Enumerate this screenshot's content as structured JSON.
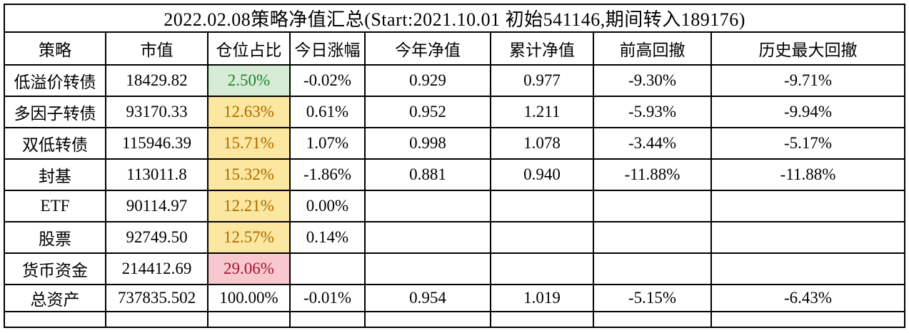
{
  "title": "2022.02.08策略净值汇总(Start:2021.10.01 初始541146,期间转入189176)",
  "table": {
    "headers": [
      "策略",
      "市值",
      "仓位占比",
      "今日涨幅",
      "今年净值",
      "累计净值",
      "前高回撤",
      "历史最大回撤"
    ],
    "rows": [
      {
        "cells": [
          "低溢价转债",
          "18429.82",
          "2.50%",
          "-0.02%",
          "0.929",
          "0.977",
          "-9.30%",
          "-9.71%"
        ],
        "highlight": "green"
      },
      {
        "cells": [
          "多因子转债",
          "93170.33",
          "12.63%",
          "0.61%",
          "0.952",
          "1.211",
          "-5.93%",
          "-9.94%"
        ],
        "highlight": "yellow"
      },
      {
        "cells": [
          "双低转债",
          "115946.39",
          "15.71%",
          "1.07%",
          "0.998",
          "1.078",
          "-3.44%",
          "-5.17%"
        ],
        "highlight": "yellow"
      },
      {
        "cells": [
          "封基",
          "113011.8",
          "15.32%",
          "-1.86%",
          "0.881",
          "0.940",
          "-11.88%",
          "-11.88%"
        ],
        "highlight": "yellow"
      },
      {
        "cells": [
          "ETF",
          "90114.97",
          "12.21%",
          "0.00%",
          "",
          "",
          "",
          ""
        ],
        "highlight": "yellow"
      },
      {
        "cells": [
          "股票",
          "92749.50",
          "12.57%",
          "0.14%",
          "",
          "",
          "",
          ""
        ],
        "highlight": "yellow"
      },
      {
        "cells": [
          "货币资金",
          "214412.69",
          "29.06%",
          "",
          "",
          "",
          "",
          ""
        ],
        "highlight": "pink"
      },
      {
        "cells": [
          "总资产",
          "737835.502",
          "100.00%",
          "-0.01%",
          "0.954",
          "1.019",
          "-5.15%",
          "-6.43%"
        ],
        "highlight": "none"
      }
    ]
  },
  "colors": {
    "green_bg": "#d6ecd4",
    "green_text": "#1e8234",
    "yellow_bg": "#fbe79f",
    "yellow_text": "#ad6800",
    "pink_bg": "#f9c8ce",
    "pink_text": "#a01330",
    "border": "#000000"
  }
}
